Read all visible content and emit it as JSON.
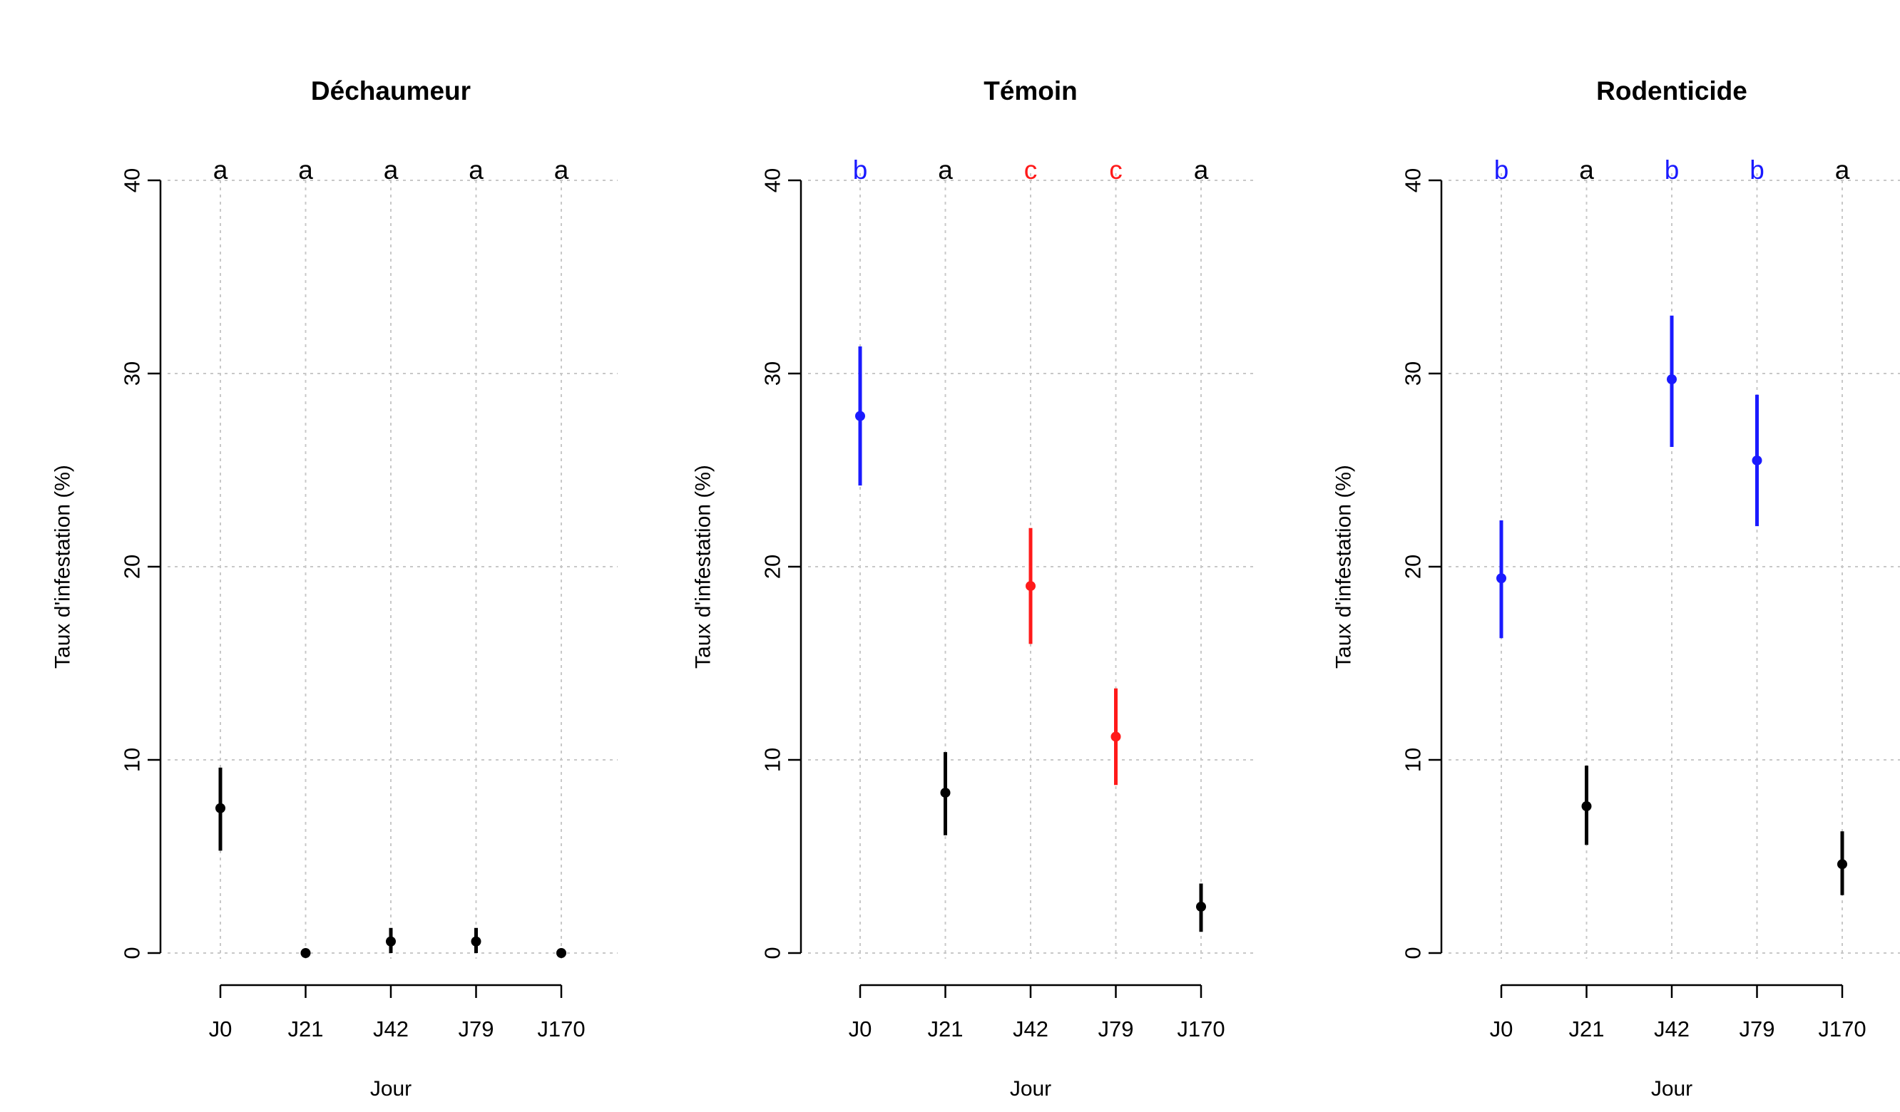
{
  "colors": {
    "a": "#000000",
    "b": "#1a1aff",
    "c": "#ff1a1a"
  },
  "chart_data": [
    {
      "type": "scatter",
      "title": "Déchaumeur",
      "xlabel": "Jour",
      "ylabel": "Taux d'infestation (%)",
      "categories": [
        "J0",
        "J21",
        "J42",
        "J79",
        "J170"
      ],
      "yticks": [
        0,
        10,
        20,
        30,
        40
      ],
      "ylim": [
        0,
        40
      ],
      "grid": true,
      "points": [
        {
          "x": "J0",
          "y": 7.5,
          "lower": 5.3,
          "upper": 9.6,
          "letter": "a"
        },
        {
          "x": "J21",
          "y": 0.0,
          "lower": -0.2,
          "upper": 0.2,
          "letter": "a"
        },
        {
          "x": "J42",
          "y": 0.6,
          "lower": 0.0,
          "upper": 1.3,
          "letter": "a"
        },
        {
          "x": "J79",
          "y": 0.6,
          "lower": 0.0,
          "upper": 1.3,
          "letter": "a"
        },
        {
          "x": "J170",
          "y": 0.0,
          "lower": -0.2,
          "upper": 0.2,
          "letter": "a"
        }
      ]
    },
    {
      "type": "scatter",
      "title": "Témoin",
      "xlabel": "Jour",
      "ylabel": "Taux d'infestation (%)",
      "categories": [
        "J0",
        "J21",
        "J42",
        "J79",
        "J170"
      ],
      "yticks": [
        0,
        10,
        20,
        30,
        40
      ],
      "ylim": [
        0,
        40
      ],
      "grid": true,
      "points": [
        {
          "x": "J0",
          "y": 27.8,
          "lower": 24.2,
          "upper": 31.4,
          "letter": "b"
        },
        {
          "x": "J21",
          "y": 8.3,
          "lower": 6.1,
          "upper": 10.4,
          "letter": "a"
        },
        {
          "x": "J42",
          "y": 19.0,
          "lower": 16.0,
          "upper": 22.0,
          "letter": "c"
        },
        {
          "x": "J79",
          "y": 11.2,
          "lower": 8.7,
          "upper": 13.7,
          "letter": "c"
        },
        {
          "x": "J170",
          "y": 2.4,
          "lower": 1.1,
          "upper": 3.6,
          "letter": "a"
        }
      ]
    },
    {
      "type": "scatter",
      "title": "Rodenticide",
      "xlabel": "Jour",
      "ylabel": "Taux d'infestation (%)",
      "categories": [
        "J0",
        "J21",
        "J42",
        "J79",
        "J170"
      ],
      "yticks": [
        0,
        10,
        20,
        30,
        40
      ],
      "ylim": [
        0,
        40
      ],
      "grid": true,
      "points": [
        {
          "x": "J0",
          "y": 19.4,
          "lower": 16.3,
          "upper": 22.4,
          "letter": "b"
        },
        {
          "x": "J21",
          "y": 7.6,
          "lower": 5.6,
          "upper": 9.7,
          "letter": "a"
        },
        {
          "x": "J42",
          "y": 29.7,
          "lower": 26.2,
          "upper": 33.0,
          "letter": "b"
        },
        {
          "x": "J79",
          "y": 25.5,
          "lower": 22.1,
          "upper": 28.9,
          "letter": "b"
        },
        {
          "x": "J170",
          "y": 4.6,
          "lower": 3.0,
          "upper": 6.3,
          "letter": "a"
        }
      ]
    }
  ]
}
